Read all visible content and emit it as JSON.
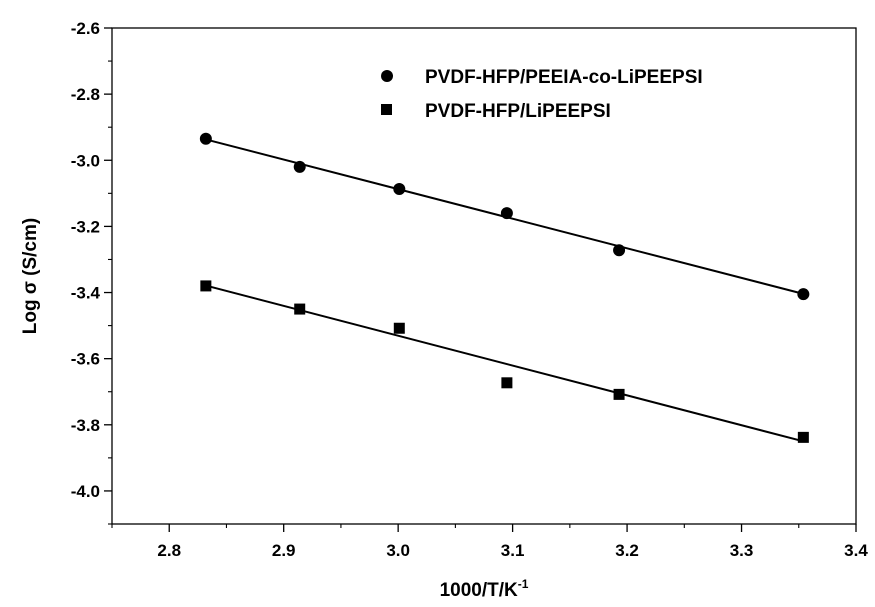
{
  "chart_data": {
    "type": "scatter",
    "xlabel": "1000/T/K",
    "xlabel_sup": "-1",
    "ylabel": "Log σ (S/cm)",
    "xlim": [
      2.75,
      3.4
    ],
    "ylim": [
      -4.1,
      -2.6
    ],
    "xticks": [
      2.8,
      2.9,
      3.0,
      3.1,
      3.2,
      3.3,
      3.4
    ],
    "xtick_labels": [
      "2.8",
      "2.9",
      "3.0",
      "3.1",
      "3.2",
      "3.3",
      "3.4"
    ],
    "yticks": [
      -2.6,
      -2.8,
      -3.0,
      -3.2,
      -3.4,
      -3.6,
      -3.8,
      -4.0
    ],
    "ytick_labels": [
      "-2.6",
      "-2.8",
      "-3.0",
      "-3.2",
      "-3.4",
      "-3.6",
      "-3.8",
      "-4.0"
    ],
    "grid": false,
    "legend_position": "top-right",
    "series": [
      {
        "name": "PVDF-HFP/PEEIA-co-LiPEEPSI",
        "marker": "circle",
        "color": "#000000",
        "x": [
          2.832,
          2.914,
          3.001,
          3.095,
          3.193,
          3.354
        ],
        "y": [
          -2.935,
          -3.02,
          -3.087,
          -3.16,
          -3.272,
          -3.405
        ],
        "fit": {
          "x": [
            2.832,
            3.354
          ],
          "y": [
            -2.937,
            -3.404
          ]
        }
      },
      {
        "name": "PVDF-HFP/LiPEEPSI",
        "marker": "square",
        "color": "#000000",
        "x": [
          2.832,
          2.914,
          3.001,
          3.095,
          3.193,
          3.354
        ],
        "y": [
          -3.38,
          -3.45,
          -3.508,
          -3.673,
          -3.708,
          -3.838
        ],
        "fit": {
          "x": [
            2.832,
            3.354
          ],
          "y": [
            -3.379,
            -3.85
          ]
        }
      }
    ]
  }
}
